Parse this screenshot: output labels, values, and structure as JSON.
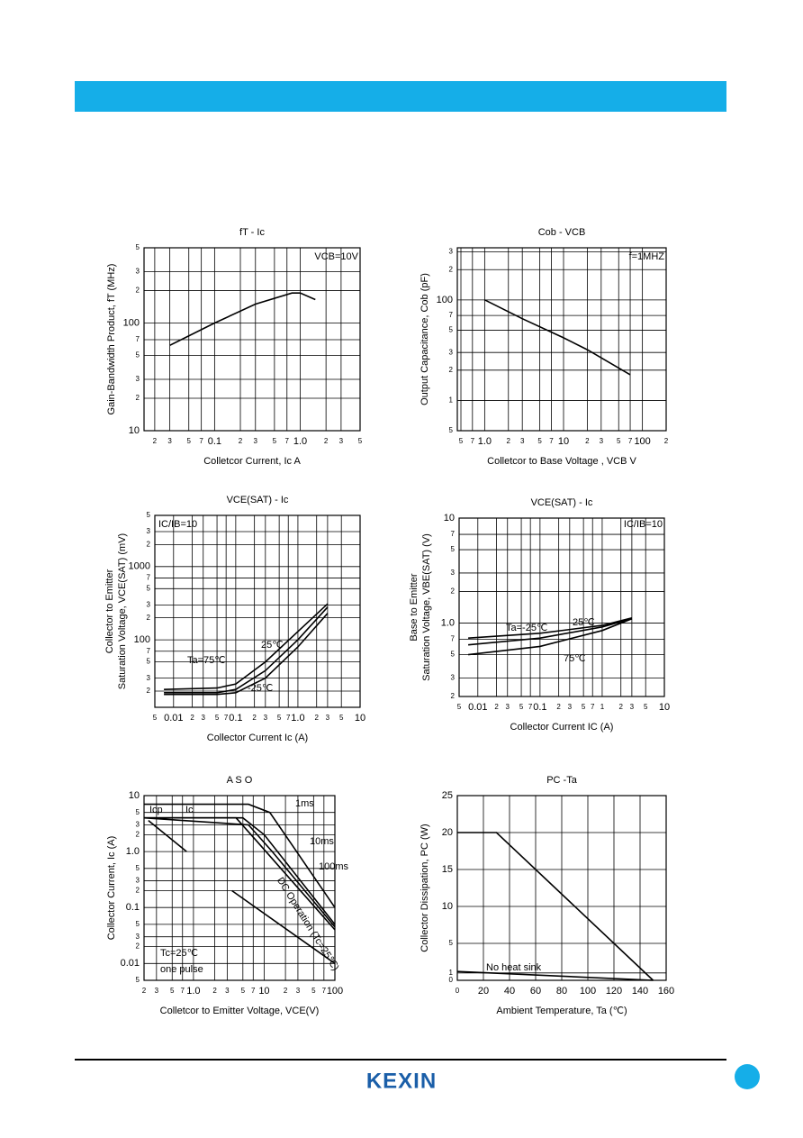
{
  "chart_data": [
    {
      "type": "line",
      "title": "fT - Ic",
      "xlabel": "Colletcor Current, Ic  A",
      "ylabel": [
        "Gain-Bandwidth Product, fT (MHz)"
      ],
      "annotations": [
        "VCB=10V"
      ],
      "xlog": true,
      "ylog": true,
      "grid": true,
      "color": "#000000",
      "xlim": [
        0.015,
        5
      ],
      "ylim": [
        10,
        500
      ],
      "xticks": [
        {
          "value": 0.02,
          "label": "2"
        },
        {
          "value": 0.03,
          "label": "3"
        },
        {
          "value": 0.05,
          "label": "5"
        },
        {
          "value": 0.07,
          "label": "7"
        },
        0.1,
        {
          "value": 0.2,
          "label": "2"
        },
        {
          "value": 0.3,
          "label": "3"
        },
        {
          "value": 0.5,
          "label": "5"
        },
        {
          "value": 0.7,
          "label": "7"
        },
        {
          "value": 1,
          "label": "1.0"
        },
        2,
        3,
        5
      ],
      "yticks": [
        {
          "value": 500,
          "label": "5"
        },
        {
          "value": 300,
          "label": "3"
        },
        {
          "value": 200,
          "label": "2"
        },
        100,
        {
          "value": 70,
          "label": "7"
        },
        {
          "value": 50,
          "label": "5"
        },
        {
          "value": 30,
          "label": "3"
        },
        {
          "value": 20,
          "label": "2"
        },
        10
      ],
      "series": [
        {
          "x": [
            0.03,
            0.1,
            0.3,
            0.8,
            1.0,
            1.5
          ],
          "values": [
            62,
            100,
            150,
            190,
            190,
            165
          ]
        }
      ]
    },
    {
      "type": "line",
      "title": "Cob - VCB",
      "xlabel": "Colletcor to Base Voltage , VCB  V",
      "ylabel": [
        "Output  Capacitance, Cob (pF)"
      ],
      "annotations": [
        "f=1MHZ"
      ],
      "xlog": true,
      "ylog": true,
      "grid": true,
      "color": "#000000",
      "xlim": [
        0.45,
        200
      ],
      "ylim": [
        5,
        330
      ],
      "xticks": [
        {
          "value": 0.5,
          "label": "5"
        },
        {
          "value": 0.7,
          "label": "7"
        },
        {
          "value": 1,
          "label": "1.0"
        },
        2,
        3,
        5,
        7,
        10,
        {
          "value": 20,
          "label": "2"
        },
        {
          "value": 30,
          "label": "3"
        },
        {
          "value": 50,
          "label": "5"
        },
        {
          "value": 70,
          "label": "7"
        },
        100,
        {
          "value": 200,
          "label": "2"
        }
      ],
      "yticks": [
        {
          "value": 300,
          "label": "3"
        },
        {
          "value": 200,
          "label": "2"
        },
        100,
        {
          "value": 70,
          "label": "7"
        },
        {
          "value": 50,
          "label": "5"
        },
        {
          "value": 30,
          "label": "3"
        },
        {
          "value": 20,
          "label": "2"
        },
        {
          "value": 10,
          "label": "1"
        },
        5
      ],
      "series": [
        {
          "x": [
            1,
            3,
            10,
            20,
            70
          ],
          "values": [
            100,
            65,
            42,
            32,
            18
          ]
        }
      ]
    },
    {
      "type": "line",
      "title": "VCE(SAT) - Ic",
      "xlabel": "Collector Current Ic (A)",
      "ylabel": [
        "Collector to Emitter",
        "Saturation Voltage, VCE(SAT) (mV)"
      ],
      "annotations": [
        "IC/IB=10"
      ],
      "xlog": true,
      "ylog": true,
      "grid": true,
      "color": "#000000",
      "xlim": [
        0.005,
        10
      ],
      "ylim": [
        12,
        5000
      ],
      "xticks": [
        {
          "value": 0.005,
          "label": "5"
        },
        0.01,
        {
          "value": 0.02,
          "label": "2"
        },
        {
          "value": 0.03,
          "label": "3"
        },
        {
          "value": 0.05,
          "label": "5"
        },
        {
          "value": 0.07,
          "label": "7"
        },
        0.1,
        {
          "value": 0.2,
          "label": "2"
        },
        {
          "value": 0.3,
          "label": "3"
        },
        {
          "value": 0.5,
          "label": "5"
        },
        {
          "value": 0.7,
          "label": "7"
        },
        {
          "value": 1,
          "label": "1.0"
        },
        2,
        3,
        5,
        10
      ],
      "yticks": [
        {
          "value": 5000,
          "label": "5"
        },
        {
          "value": 3000,
          "label": "3"
        },
        {
          "value": 2000,
          "label": "2"
        },
        1000,
        {
          "value": 700,
          "label": "7"
        },
        {
          "value": 500,
          "label": "5"
        },
        {
          "value": 300,
          "label": "3"
        },
        {
          "value": 200,
          "label": "2"
        },
        100,
        {
          "value": 70,
          "label": "7"
        },
        {
          "value": 50,
          "label": "5"
        },
        {
          "value": 30,
          "label": "3"
        },
        {
          "value": 20,
          "label": "2"
        }
      ],
      "series": [
        {
          "name": "Ta=75℃",
          "x": [
            0.007,
            0.05,
            0.1,
            0.3,
            1,
            3
          ],
          "values": [
            21,
            22,
            25,
            50,
            130,
            310
          ]
        },
        {
          "name": "25℃",
          "x": [
            0.007,
            0.05,
            0.1,
            0.3,
            1,
            3
          ],
          "values": [
            19,
            19,
            21,
            38,
            100,
            280
          ]
        },
        {
          "name": "-25℃",
          "x": [
            0.007,
            0.05,
            0.1,
            0.3,
            1,
            3
          ],
          "values": [
            18,
            18,
            19,
            30,
            80,
            230
          ]
        }
      ]
    },
    {
      "type": "line",
      "title": "VCE(SAT) - Ic",
      "xlabel": "Collector Current IC (A)",
      "ylabel": [
        "Base to Emitter",
        "Saturation Voltage, VBE(SAT) (V)"
      ],
      "annotations": [
        "IC/IB=10"
      ],
      "xlog": true,
      "ylog": true,
      "grid": true,
      "color": "#000000",
      "xlim": [
        0.005,
        10
      ],
      "ylim": [
        0.2,
        10
      ],
      "xticks": [
        {
          "value": 0.005,
          "label": "5"
        },
        0.01,
        {
          "value": 0.02,
          "label": "2"
        },
        {
          "value": 0.03,
          "label": "3"
        },
        {
          "value": 0.05,
          "label": "5"
        },
        {
          "value": 0.07,
          "label": "7"
        },
        0.1,
        {
          "value": 0.2,
          "label": "2"
        },
        {
          "value": 0.3,
          "label": "3"
        },
        {
          "value": 0.5,
          "label": "5"
        },
        {
          "value": 0.7,
          "label": "7"
        },
        1,
        2,
        3,
        5,
        10
      ],
      "yticks": [
        10,
        7,
        5,
        3,
        2,
        {
          "value": 1,
          "label": "1.0"
        },
        {
          "value": 0.7,
          "label": "7"
        },
        {
          "value": 0.5,
          "label": "5"
        },
        {
          "value": 0.3,
          "label": "3"
        },
        {
          "value": 0.2,
          "label": "2"
        }
      ],
      "series": [
        {
          "name": "Ta=-25℃",
          "x": [
            0.007,
            0.1,
            1,
            3
          ],
          "values": [
            0.72,
            0.8,
            0.95,
            1.12
          ]
        },
        {
          "name": "25℃",
          "x": [
            0.007,
            0.1,
            1,
            3
          ],
          "values": [
            0.62,
            0.72,
            0.92,
            1.1
          ]
        },
        {
          "name": "75℃",
          "x": [
            0.007,
            0.1,
            1,
            3
          ],
          "values": [
            0.5,
            0.6,
            0.85,
            1.1
          ]
        }
      ]
    },
    {
      "type": "line",
      "title": "A S O",
      "xlabel": "Colletcor to Emitter Voltage, VCE(V)",
      "ylabel": [
        "Collector Current, Ic (A)"
      ],
      "annotations": [
        "Icp",
        "Ic",
        "Tc=25℃",
        "one pulse"
      ],
      "xlog": true,
      "ylog": true,
      "grid": true,
      "color": "#000000",
      "xlim": [
        0.2,
        100
      ],
      "ylim": [
        0.005,
        10
      ],
      "xticks": [
        {
          "value": 0.2,
          "label": "2"
        },
        {
          "value": 0.3,
          "label": "3"
        },
        {
          "value": 0.5,
          "label": "5"
        },
        {
          "value": 0.7,
          "label": "7"
        },
        {
          "value": 1,
          "label": "1.0"
        },
        2,
        3,
        5,
        7,
        10,
        {
          "value": 20,
          "label": "2"
        },
        {
          "value": 30,
          "label": "3"
        },
        {
          "value": 50,
          "label": "5"
        },
        {
          "value": 70,
          "label": "7"
        },
        100
      ],
      "yticks": [
        10,
        5,
        3,
        2,
        {
          "value": 1,
          "label": "1.0"
        },
        {
          "value": 0.5,
          "label": "5"
        },
        {
          "value": 0.3,
          "label": "3"
        },
        {
          "value": 0.2,
          "label": "2"
        },
        0.1,
        {
          "value": 0.05,
          "label": "5"
        },
        {
          "value": 0.03,
          "label": "3"
        },
        {
          "value": 0.02,
          "label": "2"
        },
        0.01,
        {
          "value": 0.005,
          "label": "5"
        }
      ],
      "series": [
        {
          "name": "1ms",
          "x": [
            0.2,
            6,
            12,
            100
          ],
          "values": [
            7,
            7,
            5,
            0.1
          ]
        },
        {
          "name": "10ms",
          "x": [
            0.2,
            5,
            10,
            100
          ],
          "values": [
            4,
            4,
            2,
            0.05
          ]
        },
        {
          "name": "100ms",
          "x": [
            0.2,
            6,
            13,
            100
          ],
          "values": [
            4,
            3,
            1,
            0.045
          ]
        },
        {
          "name": "DC Operation (Tc=25℃)",
          "x": [
            0.2,
            4,
            8,
            100
          ],
          "values": [
            4,
            4,
            1.5,
            0.04
          ]
        },
        {
          "x": [
            0.23,
            0.8,
            2,
            3.5,
            100
          ],
          "values": [
            3.6,
            1.0,
            null,
            0.2,
            0.01
          ]
        }
      ]
    },
    {
      "type": "line",
      "title": "PC -Ta",
      "xlabel": "Ambient  Temperature,  Ta (℃)",
      "ylabel": [
        "Collector Dissipation, PC (W)"
      ],
      "annotations": [],
      "xlog": false,
      "ylog": false,
      "grid": true,
      "color": "#000000",
      "xlim": [
        0,
        160
      ],
      "ylim": [
        0,
        25
      ],
      "xticks": [
        0,
        20,
        40,
        60,
        80,
        100,
        120,
        140,
        160
      ],
      "yticks": [
        0,
        1,
        5,
        10,
        15,
        20,
        25
      ],
      "series": [
        {
          "x": [
            0,
            30,
            150
          ],
          "values": [
            20,
            20,
            0
          ]
        },
        {
          "name": "No heat sink",
          "x": [
            0,
            150
          ],
          "values": [
            1.2,
            0
          ]
        }
      ]
    }
  ],
  "footer": {
    "logo": "KEXIN"
  }
}
